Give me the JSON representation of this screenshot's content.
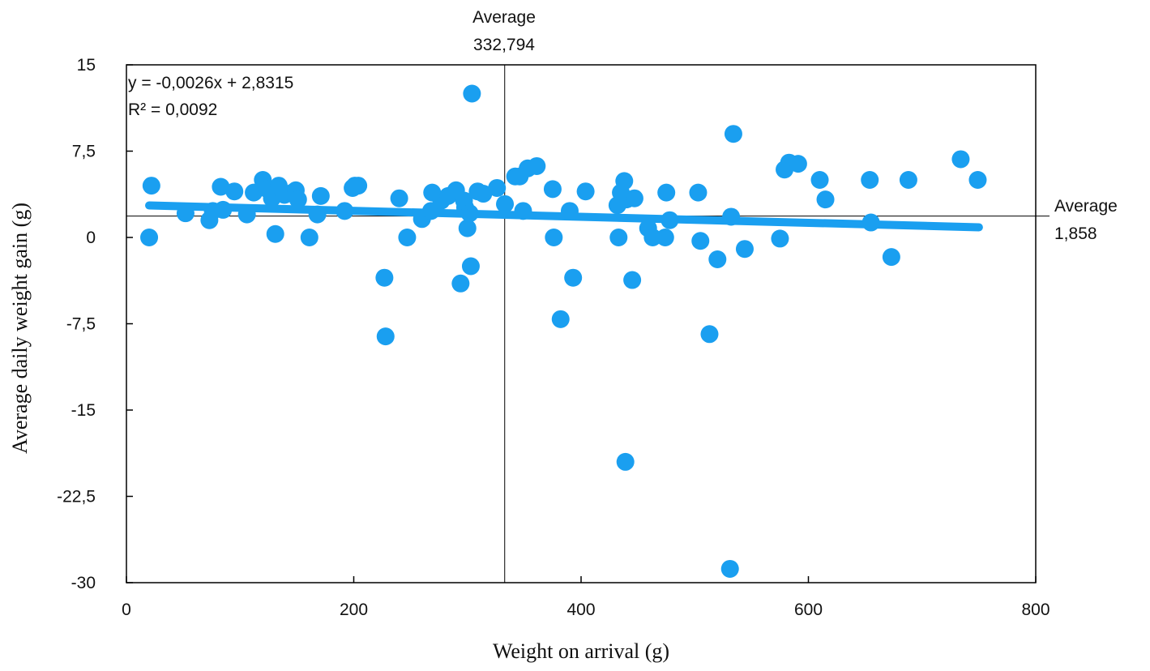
{
  "chart_data": {
    "type": "scatter",
    "xlabel": "Weight on arrival (g)",
    "ylabel": "Average daily weight gain (g)",
    "xlim": [
      0,
      800
    ],
    "ylim": [
      -30,
      15
    ],
    "x_ticks": [
      "0",
      "200",
      "400",
      "600",
      "800"
    ],
    "y_ticks": [
      "15",
      "7,5",
      "0",
      "-7,5",
      "-15",
      "-22,5",
      "-30"
    ],
    "x_tick_values": [
      0,
      200,
      400,
      600,
      800
    ],
    "y_tick_values": [
      15,
      7.5,
      0,
      -7.5,
      -15,
      -22.5,
      -30
    ],
    "grid": false,
    "point_color": "#1a9ff0",
    "trend_color": "#1a9ff0",
    "equation": "y = -0,0026x + 2,8315",
    "r_squared": "R² = 0,0092",
    "trendline": {
      "slope": -0.0026,
      "intercept": 2.8315,
      "x_range": [
        20,
        750
      ]
    },
    "reference_lines": {
      "vertical": {
        "x": 332.794,
        "label_line1": "Average",
        "label_line2": "332,794"
      },
      "horizontal": {
        "y": 1.858,
        "label_line1": "Average",
        "label_line2": "1,858"
      }
    },
    "points": [
      [
        20,
        0
      ],
      [
        22,
        4.5
      ],
      [
        52,
        2.1
      ],
      [
        73,
        1.5
      ],
      [
        76,
        2.3
      ],
      [
        83,
        4.4
      ],
      [
        85,
        2.4
      ],
      [
        95,
        4.0
      ],
      [
        106,
        2.0
      ],
      [
        112,
        3.9
      ],
      [
        120,
        5.0
      ],
      [
        124,
        4.2
      ],
      [
        128,
        3.4
      ],
      [
        131,
        0.3
      ],
      [
        134,
        4.5
      ],
      [
        139,
        3.7
      ],
      [
        146,
        3.9
      ],
      [
        149,
        4.1
      ],
      [
        151,
        3.3
      ],
      [
        161,
        0
      ],
      [
        168,
        2.0
      ],
      [
        171,
        3.6
      ],
      [
        192,
        2.3
      ],
      [
        199,
        4.3
      ],
      [
        201,
        4.5
      ],
      [
        204,
        4.5
      ],
      [
        227,
        -3.5
      ],
      [
        228,
        -8.6
      ],
      [
        240,
        3.4
      ],
      [
        247,
        0
      ],
      [
        260,
        1.6
      ],
      [
        268,
        2.3
      ],
      [
        269,
        3.9
      ],
      [
        277,
        3.2
      ],
      [
        283,
        3.6
      ],
      [
        290,
        4.1
      ],
      [
        294,
        -4.0
      ],
      [
        297,
        3.2
      ],
      [
        298,
        2.6
      ],
      [
        300,
        0.8
      ],
      [
        302,
        2.1
      ],
      [
        303,
        -2.5
      ],
      [
        304,
        12.5
      ],
      [
        309,
        4.0
      ],
      [
        314,
        3.8
      ],
      [
        326,
        4.3
      ],
      [
        333,
        2.9
      ],
      [
        342,
        5.3
      ],
      [
        346,
        5.3
      ],
      [
        349,
        2.3
      ],
      [
        353,
        6.0
      ],
      [
        361,
        6.2
      ],
      [
        375,
        4.2
      ],
      [
        376,
        0
      ],
      [
        382,
        -7.1
      ],
      [
        390,
        2.3
      ],
      [
        393,
        -3.5
      ],
      [
        404,
        4.0
      ],
      [
        432,
        2.8
      ],
      [
        433,
        0
      ],
      [
        435,
        3.9
      ],
      [
        438,
        4.9
      ],
      [
        439,
        -19.5
      ],
      [
        440,
        3.3
      ],
      [
        445,
        -3.7
      ],
      [
        447,
        3.4
      ],
      [
        459,
        0.8
      ],
      [
        463,
        0
      ],
      [
        474,
        0
      ],
      [
        475,
        3.9
      ],
      [
        478,
        1.5
      ],
      [
        503,
        3.9
      ],
      [
        505,
        -0.3
      ],
      [
        513,
        -8.4
      ],
      [
        520,
        -1.9
      ],
      [
        531,
        -28.8
      ],
      [
        532,
        1.8
      ],
      [
        534,
        9.0
      ],
      [
        544,
        -1.0
      ],
      [
        575,
        -0.1
      ],
      [
        579,
        5.9
      ],
      [
        583,
        6.5
      ],
      [
        591,
        6.4
      ],
      [
        610,
        5.0
      ],
      [
        615,
        3.3
      ],
      [
        654,
        5.0
      ],
      [
        655,
        1.3
      ],
      [
        673,
        -1.7
      ],
      [
        688,
        5.0
      ],
      [
        734,
        6.8
      ],
      [
        749,
        5.0
      ]
    ]
  }
}
